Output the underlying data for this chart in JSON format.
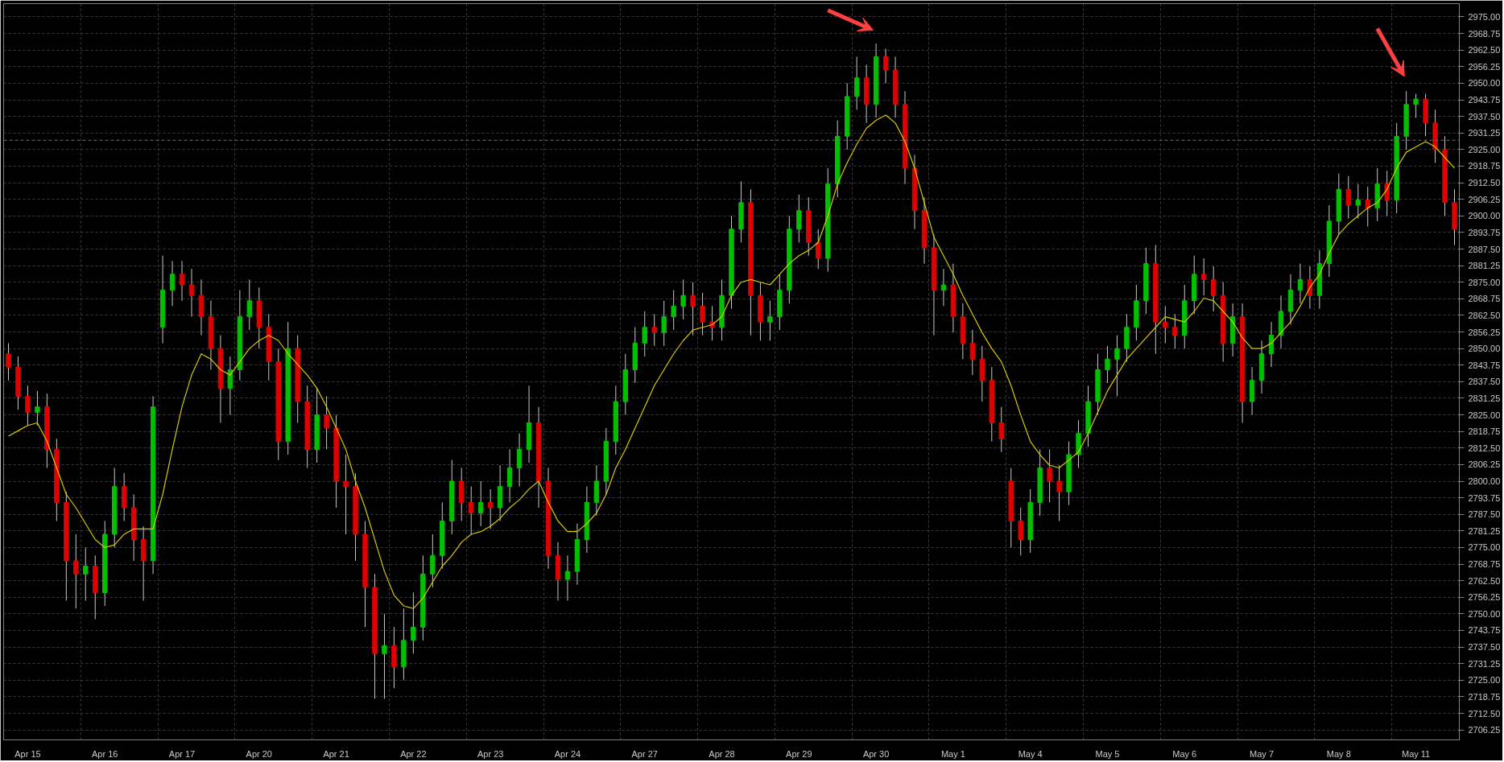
{
  "chart_data": {
    "type": "candlestick",
    "categories": [
      null,
      null,
      "Apr 15",
      null,
      null,
      null,
      null,
      null,
      null,
      null,
      "Apr 16",
      null,
      null,
      null,
      null,
      null,
      null,
      null,
      "Apr 17",
      null,
      null,
      null,
      null,
      null,
      null,
      null,
      "Apr 20",
      null,
      null,
      null,
      null,
      null,
      null,
      null,
      "Apr 21",
      null,
      null,
      null,
      null,
      null,
      null,
      null,
      "Apr 22",
      null,
      null,
      null,
      null,
      null,
      null,
      null,
      "Apr 23",
      null,
      null,
      null,
      null,
      null,
      null,
      null,
      "Apr 24",
      null,
      null,
      null,
      null,
      null,
      null,
      null,
      "Apr 27",
      null,
      null,
      null,
      null,
      null,
      null,
      null,
      "Apr 28",
      null,
      null,
      null,
      null,
      null,
      null,
      null,
      "Apr 29",
      null,
      null,
      null,
      null,
      null,
      null,
      null,
      "Apr 30",
      null,
      null,
      null,
      null,
      null,
      null,
      null,
      "May 1",
      null,
      null,
      null,
      null,
      null,
      null,
      null,
      "May 4",
      null,
      null,
      null,
      null,
      null,
      null,
      null,
      "May 5",
      null,
      null,
      null,
      null,
      null,
      null,
      null,
      "May 6",
      null,
      null,
      null,
      null,
      null,
      null,
      null,
      "May 7",
      null,
      null,
      null,
      null,
      null,
      null,
      null,
      "May 8",
      null,
      null,
      null,
      null,
      null,
      null,
      null,
      "May 11",
      null,
      null,
      null,
      null
    ],
    "series": [
      {
        "colors": [
          "#e00000",
          "#e00000",
          "#e00000",
          "#00c000",
          "#e00000",
          "#e00000",
          "#e00000",
          "#e00000",
          "#00c000",
          "#e00000",
          "#00c000",
          "#00c000",
          "#e00000",
          "#e00000",
          "#e00000",
          "#00c000",
          "#00c000",
          "#00c000",
          "#e00000",
          "#e00000",
          "#e00000",
          "#e00000",
          "#e00000",
          "#00c000",
          "#00c000",
          "#00c000",
          "#e00000",
          "#e00000",
          "#e00000",
          "#00c000",
          "#e00000",
          "#e00000",
          "#00c000",
          "#e00000",
          "#e00000",
          "#e00000",
          "#e00000",
          "#e00000",
          "#e00000",
          "#00c000",
          "#e00000",
          "#00c000",
          "#00c000",
          "#00c000",
          "#00c000",
          "#00c000",
          "#00c000",
          "#e00000",
          "#e00000",
          "#00c000",
          "#e00000",
          "#00c000",
          "#00c000",
          "#00c000",
          "#00c000",
          "#e00000",
          "#e00000",
          "#e00000",
          "#00c000",
          "#00c000",
          "#00c000",
          "#00c000",
          "#00c000",
          "#00c000",
          "#00c000",
          "#00c000",
          "#00c000",
          "#e00000",
          "#00c000",
          "#00c000",
          "#00c000",
          "#e00000",
          "#e00000",
          "#e00000",
          "#00c000",
          "#00c000",
          "#00c000",
          "#e00000",
          "#e00000",
          "#00c000",
          "#00c000",
          "#00c000",
          "#00c000",
          "#e00000",
          "#e00000",
          "#00c000",
          "#00c000",
          "#00c000",
          "#00c000",
          "#e00000",
          "#00c000",
          "#e00000",
          "#e00000",
          "#e00000",
          "#e00000",
          "#e00000",
          "#e00000",
          "#00c000",
          "#e00000",
          "#e00000",
          "#e00000",
          "#e00000",
          "#e00000",
          "#e00000",
          "#e00000",
          "#e00000",
          "#00c000",
          "#00c000",
          "#e00000",
          "#e00000",
          "#00c000",
          "#00c000",
          "#00c000",
          "#00c000",
          "#00c000",
          "#00c000",
          "#00c000",
          "#00c000",
          "#00c000",
          "#e00000",
          "#e00000",
          "#e00000",
          "#00c000",
          "#00c000",
          "#e00000",
          "#e00000",
          "#e00000",
          "#00c000",
          "#e00000",
          "#00c000",
          "#00c000",
          "#00c000",
          "#00c000",
          "#00c000",
          "#00c000",
          "#e00000",
          "#00c000",
          "#00c000",
          "#00c000",
          "#e00000",
          "#00c000",
          "#e00000",
          "#00c000",
          "#e00000",
          "#00c000",
          "#00c000",
          "#00c000",
          "#e00000",
          "#e00000",
          "#e00000",
          "#e00000"
        ],
        "ohlc": [
          [
            2848,
            2852,
            2838,
            2843
          ],
          [
            2843,
            2847,
            2827,
            2832
          ],
          [
            2832,
            2836,
            2821,
            2826
          ],
          [
            2826,
            2834,
            2821,
            2828
          ],
          [
            2828,
            2833,
            2805,
            2812
          ],
          [
            2812,
            2816,
            2785,
            2792
          ],
          [
            2792,
            2796,
            2755,
            2770
          ],
          [
            2770,
            2780,
            2752,
            2765
          ],
          [
            2765,
            2775,
            2755,
            2768
          ],
          [
            2768,
            2772,
            2748,
            2758
          ],
          [
            2758,
            2785,
            2753,
            2780
          ],
          [
            2780,
            2805,
            2775,
            2798
          ],
          [
            2798,
            2803,
            2785,
            2790
          ],
          [
            2790,
            2795,
            2770,
            2778
          ],
          [
            2778,
            2783,
            2755,
            2770
          ],
          [
            2770,
            2832,
            2765,
            2828
          ],
          [
            2858,
            2885,
            2852,
            2872
          ],
          [
            2872,
            2883,
            2866,
            2878
          ],
          [
            2878,
            2883,
            2868,
            2874
          ],
          [
            2874,
            2880,
            2862,
            2870
          ],
          [
            2870,
            2876,
            2855,
            2862
          ],
          [
            2862,
            2868,
            2842,
            2850
          ],
          [
            2850,
            2855,
            2822,
            2835
          ],
          [
            2835,
            2847,
            2825,
            2842
          ],
          [
            2842,
            2872,
            2838,
            2862
          ],
          [
            2862,
            2876,
            2857,
            2868
          ],
          [
            2868,
            2873,
            2850,
            2858
          ],
          [
            2858,
            2863,
            2838,
            2845
          ],
          [
            2845,
            2850,
            2808,
            2815
          ],
          [
            2815,
            2860,
            2810,
            2850
          ],
          [
            2850,
            2855,
            2822,
            2830
          ],
          [
            2830,
            2836,
            2805,
            2812
          ],
          [
            2812,
            2835,
            2807,
            2825
          ],
          [
            2825,
            2832,
            2812,
            2820
          ],
          [
            2820,
            2825,
            2790,
            2800
          ],
          [
            2800,
            2810,
            2780,
            2798
          ],
          [
            2798,
            2803,
            2770,
            2780
          ],
          [
            2780,
            2785,
            2745,
            2760
          ],
          [
            2760,
            2765,
            2718,
            2735
          ],
          [
            2735,
            2750,
            2718,
            2738
          ],
          [
            2738,
            2745,
            2722,
            2730
          ],
          [
            2730,
            2752,
            2725,
            2740
          ],
          [
            2740,
            2758,
            2735,
            2745
          ],
          [
            2745,
            2772,
            2740,
            2765
          ],
          [
            2765,
            2780,
            2760,
            2772
          ],
          [
            2772,
            2792,
            2767,
            2785
          ],
          [
            2785,
            2808,
            2780,
            2800
          ],
          [
            2800,
            2805,
            2785,
            2792
          ],
          [
            2792,
            2798,
            2780,
            2788
          ],
          [
            2788,
            2800,
            2783,
            2792
          ],
          [
            2792,
            2797,
            2782,
            2790
          ],
          [
            2790,
            2806,
            2785,
            2798
          ],
          [
            2798,
            2812,
            2792,
            2805
          ],
          [
            2805,
            2818,
            2798,
            2812
          ],
          [
            2812,
            2836,
            2807,
            2822
          ],
          [
            2822,
            2828,
            2790,
            2800
          ],
          [
            2800,
            2805,
            2767,
            2772
          ],
          [
            2772,
            2777,
            2755,
            2763
          ],
          [
            2763,
            2772,
            2755,
            2766
          ],
          [
            2766,
            2784,
            2761,
            2778
          ],
          [
            2778,
            2798,
            2773,
            2792
          ],
          [
            2792,
            2806,
            2787,
            2800
          ],
          [
            2800,
            2820,
            2795,
            2815
          ],
          [
            2815,
            2836,
            2810,
            2830
          ],
          [
            2830,
            2848,
            2825,
            2842
          ],
          [
            2842,
            2858,
            2837,
            2852
          ],
          [
            2852,
            2864,
            2847,
            2858
          ],
          [
            2858,
            2863,
            2851,
            2856
          ],
          [
            2856,
            2868,
            2851,
            2862
          ],
          [
            2862,
            2872,
            2857,
            2866
          ],
          [
            2866,
            2876,
            2861,
            2870
          ],
          [
            2870,
            2875,
            2855,
            2866
          ],
          [
            2866,
            2871,
            2855,
            2860
          ],
          [
            2860,
            2866,
            2853,
            2858
          ],
          [
            2858,
            2876,
            2853,
            2870
          ],
          [
            2870,
            2900,
            2865,
            2895
          ],
          [
            2895,
            2913,
            2890,
            2905
          ],
          [
            2905,
            2910,
            2855,
            2870
          ],
          [
            2870,
            2875,
            2853,
            2860
          ],
          [
            2860,
            2868,
            2853,
            2862
          ],
          [
            2862,
            2878,
            2857,
            2872
          ],
          [
            2872,
            2900,
            2867,
            2895
          ],
          [
            2895,
            2908,
            2890,
            2902
          ],
          [
            2902,
            2907,
            2885,
            2890
          ],
          [
            2890,
            2895,
            2880,
            2884
          ],
          [
            2884,
            2918,
            2879,
            2912
          ],
          [
            2912,
            2936,
            2907,
            2930
          ],
          [
            2930,
            2950,
            2925,
            2945
          ],
          [
            2945,
            2960,
            2940,
            2952
          ],
          [
            2952,
            2957,
            2935,
            2942
          ],
          [
            2942,
            2965,
            2937,
            2960
          ],
          [
            2960,
            2963,
            2950,
            2955
          ],
          [
            2955,
            2960,
            2937,
            2942
          ],
          [
            2942,
            2947,
            2912,
            2918
          ],
          [
            2918,
            2923,
            2895,
            2902
          ],
          [
            2902,
            2907,
            2882,
            2888
          ],
          [
            2888,
            2893,
            2855,
            2872
          ],
          [
            2872,
            2880,
            2866,
            2874
          ],
          [
            2874,
            2882,
            2856,
            2862
          ],
          [
            2862,
            2867,
            2846,
            2852
          ],
          [
            2852,
            2857,
            2840,
            2846
          ],
          [
            2846,
            2851,
            2830,
            2838
          ],
          [
            2838,
            2843,
            2815,
            2822
          ],
          [
            2822,
            2828,
            2811,
            2816
          ],
          [
            2800,
            2805,
            2775,
            2785
          ],
          [
            2785,
            2790,
            2772,
            2778
          ],
          [
            2778,
            2797,
            2773,
            2792
          ],
          [
            2792,
            2812,
            2787,
            2805
          ],
          [
            2805,
            2812,
            2792,
            2800
          ],
          [
            2800,
            2806,
            2785,
            2796
          ],
          [
            2796,
            2815,
            2791,
            2810
          ],
          [
            2810,
            2823,
            2805,
            2818
          ],
          [
            2818,
            2836,
            2813,
            2830
          ],
          [
            2830,
            2848,
            2825,
            2842
          ],
          [
            2842,
            2851,
            2837,
            2846
          ],
          [
            2846,
            2855,
            2832,
            2850
          ],
          [
            2850,
            2863,
            2845,
            2858
          ],
          [
            2858,
            2874,
            2853,
            2868
          ],
          [
            2868,
            2888,
            2863,
            2882
          ],
          [
            2882,
            2889,
            2848,
            2860
          ],
          [
            2860,
            2866,
            2852,
            2858
          ],
          [
            2858,
            2863,
            2850,
            2855
          ],
          [
            2855,
            2874,
            2850,
            2868
          ],
          [
            2868,
            2885,
            2863,
            2878
          ],
          [
            2878,
            2884,
            2870,
            2876
          ],
          [
            2876,
            2881,
            2864,
            2870
          ],
          [
            2870,
            2875,
            2845,
            2852
          ],
          [
            2852,
            2867,
            2847,
            2862
          ],
          [
            2862,
            2867,
            2822,
            2830
          ],
          [
            2830,
            2843,
            2825,
            2838
          ],
          [
            2838,
            2853,
            2833,
            2848
          ],
          [
            2848,
            2860,
            2843,
            2855
          ],
          [
            2855,
            2870,
            2850,
            2864
          ],
          [
            2864,
            2878,
            2859,
            2872
          ],
          [
            2872,
            2882,
            2867,
            2876
          ],
          [
            2876,
            2881,
            2865,
            2870
          ],
          [
            2870,
            2887,
            2865,
            2882
          ],
          [
            2882,
            2904,
            2877,
            2898
          ],
          [
            2898,
            2916,
            2893,
            2910
          ],
          [
            2910,
            2915,
            2899,
            2904
          ],
          [
            2904,
            2912,
            2899,
            2906
          ],
          [
            2906,
            2911,
            2896,
            2903
          ],
          [
            2903,
            2918,
            2898,
            2912
          ],
          [
            2912,
            2917,
            2900,
            2906
          ],
          [
            2906,
            2935,
            2901,
            2930
          ],
          [
            2930,
            2947,
            2925,
            2942
          ],
          [
            2942,
            2946,
            2937,
            2944
          ],
          [
            2944,
            2946,
            2930,
            2935
          ],
          [
            2935,
            2940,
            2920,
            2925
          ],
          [
            2925,
            2930,
            2900,
            2905
          ],
          [
            2905,
            2910,
            2889,
            2895
          ]
        ]
      },
      {
        "type": "line",
        "color": "#d8c800",
        "values": [
          2817,
          2819,
          2821,
          2822,
          2815,
          2805,
          2795,
          2790,
          2784,
          2778,
          2775,
          2776,
          2780,
          2782,
          2782,
          2782,
          2795,
          2812,
          2828,
          2840,
          2848,
          2846,
          2842,
          2840,
          2845,
          2850,
          2853,
          2855,
          2853,
          2848,
          2844,
          2840,
          2835,
          2828,
          2820,
          2812,
          2800,
          2790,
          2778,
          2766,
          2757,
          2753,
          2752,
          2756,
          2762,
          2768,
          2772,
          2777,
          2780,
          2781,
          2783,
          2786,
          2790,
          2793,
          2797,
          2800,
          2792,
          2785,
          2781,
          2781,
          2784,
          2788,
          2795,
          2805,
          2812,
          2820,
          2828,
          2836,
          2842,
          2848,
          2853,
          2857,
          2858,
          2859,
          2862,
          2870,
          2875,
          2876,
          2875,
          2874,
          2878,
          2882,
          2885,
          2887,
          2890,
          2900,
          2912,
          2920,
          2927,
          2933,
          2936,
          2938,
          2935,
          2928,
          2918,
          2905,
          2892,
          2885,
          2878,
          2870,
          2863,
          2856,
          2850,
          2845,
          2836,
          2825,
          2815,
          2810,
          2806,
          2805,
          2808,
          2811,
          2818,
          2826,
          2834,
          2840,
          2846,
          2850,
          2854,
          2858,
          2862,
          2861,
          2860,
          2864,
          2869,
          2868,
          2864,
          2860,
          2854,
          2850,
          2850,
          2852,
          2856,
          2860,
          2866,
          2873,
          2878,
          2886,
          2893,
          2897,
          2900,
          2903,
          2905,
          2910,
          2918,
          2924,
          2926,
          2928,
          2926,
          2922,
          2918
        ]
      }
    ],
    "ylim": [
      2702.5,
      2980
    ],
    "yticks": [
      {
        "value": 2706.25,
        "label": "2706.25"
      },
      {
        "value": 2712.5,
        "label": "2712.50"
      },
      {
        "value": 2718.75,
        "label": "2718.75"
      },
      {
        "value": 2725,
        "label": "2725.00"
      },
      {
        "value": 2731.25,
        "label": "2731.25"
      },
      {
        "value": 2737.5,
        "label": "2737.50"
      },
      {
        "value": 2743.75,
        "label": "2743.75"
      },
      {
        "value": 2750,
        "label": "2750.00"
      },
      {
        "value": 2756.25,
        "label": "2756.25"
      },
      {
        "value": 2762.5,
        "label": "2762.50"
      },
      {
        "value": 2768.75,
        "label": "2768.75"
      },
      {
        "value": 2775,
        "label": "2775.00"
      },
      {
        "value": 2781.25,
        "label": "2781.25"
      },
      {
        "value": 2787.5,
        "label": "2787.50"
      },
      {
        "value": 2793.75,
        "label": "2793.75"
      },
      {
        "value": 2800,
        "label": "2800.00"
      },
      {
        "value": 2806.25,
        "label": "2806.25"
      },
      {
        "value": 2812.5,
        "label": "2812.50"
      },
      {
        "value": 2818.75,
        "label": "2818.75"
      },
      {
        "value": 2825,
        "label": "2825.00"
      },
      {
        "value": 2831.25,
        "label": "2831.25"
      },
      {
        "value": 2837.5,
        "label": "2837.50"
      },
      {
        "value": 2843.75,
        "label": "2843.75"
      },
      {
        "value": 2850,
        "label": "2850.00"
      },
      {
        "value": 2856.25,
        "label": "2856.25"
      },
      {
        "value": 2862.5,
        "label": "2862.50"
      },
      {
        "value": 2868.75,
        "label": "2868.75"
      },
      {
        "value": 2875,
        "label": "2875.00"
      },
      {
        "value": 2881.25,
        "label": "2881.25"
      },
      {
        "value": 2887.5,
        "label": "2887.50"
      },
      {
        "value": 2893.75,
        "label": "2893.75"
      },
      {
        "value": 2900,
        "label": "2900.00"
      },
      {
        "value": 2906.25,
        "label": "2906.25"
      },
      {
        "value": 2912.5,
        "label": "2912.50"
      },
      {
        "value": 2918.75,
        "label": "2918.75"
      },
      {
        "value": 2925,
        "label": "2925.00"
      },
      {
        "value": 2931.25,
        "label": "2931.25"
      },
      {
        "value": 2937.5,
        "label": "2937.50"
      },
      {
        "value": 2943.75,
        "label": "2943.75"
      },
      {
        "value": 2950,
        "label": "2950.00"
      },
      {
        "value": 2956.25,
        "label": "2956.25"
      },
      {
        "value": 2962.5,
        "label": "2962.50"
      },
      {
        "value": 2968.75,
        "label": "2968.75"
      },
      {
        "value": 2975,
        "label": "2975.00"
      }
    ],
    "ref_lines": [
      {
        "axis": "y",
        "value": 2928.5,
        "color": "#707070",
        "line_style": "dashed"
      }
    ],
    "grid": true
  }
}
